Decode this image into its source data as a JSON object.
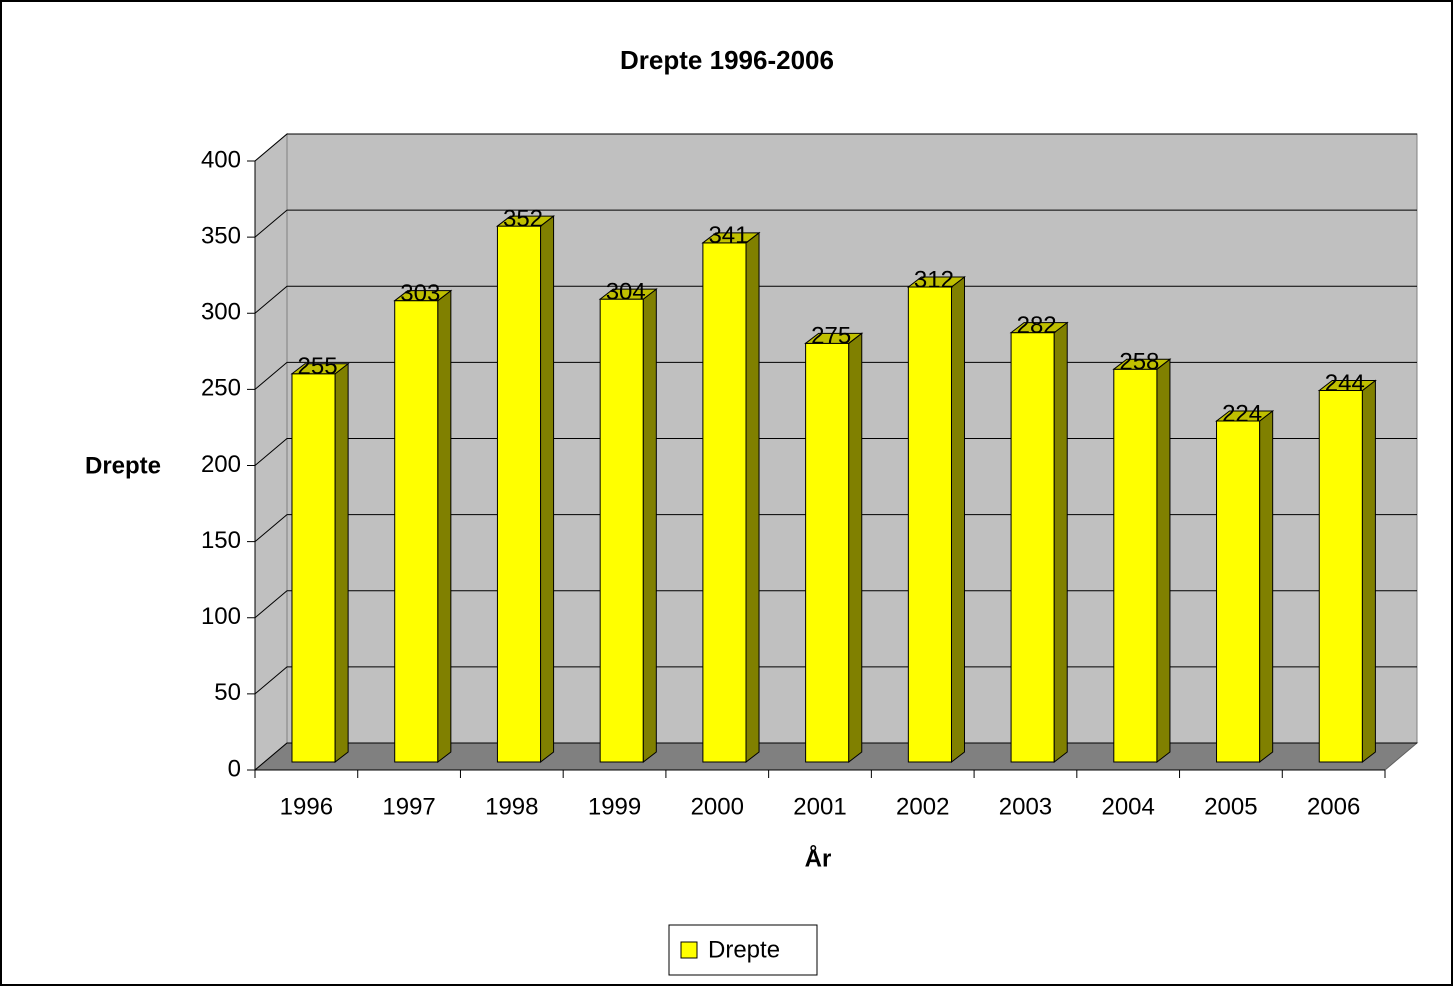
{
  "chart_data": {
    "type": "bar3d",
    "title": "Drepte 1996-2006",
    "x_label": "År",
    "y_label": "Drepte",
    "categories": [
      "1996",
      "1997",
      "1998",
      "1999",
      "2000",
      "2001",
      "2002",
      "2003",
      "2004",
      "2005",
      "2006"
    ],
    "series": [
      {
        "name": "Drepte",
        "color": "#ffff00",
        "values": [
          255,
          303,
          352,
          304,
          341,
          275,
          312,
          282,
          258,
          224,
          244
        ]
      }
    ],
    "ylim": [
      0,
      400
    ],
    "yticks": [
      0,
      50,
      100,
      150,
      200,
      250,
      300,
      350,
      400
    ],
    "grid": true,
    "legend": "bottom"
  }
}
